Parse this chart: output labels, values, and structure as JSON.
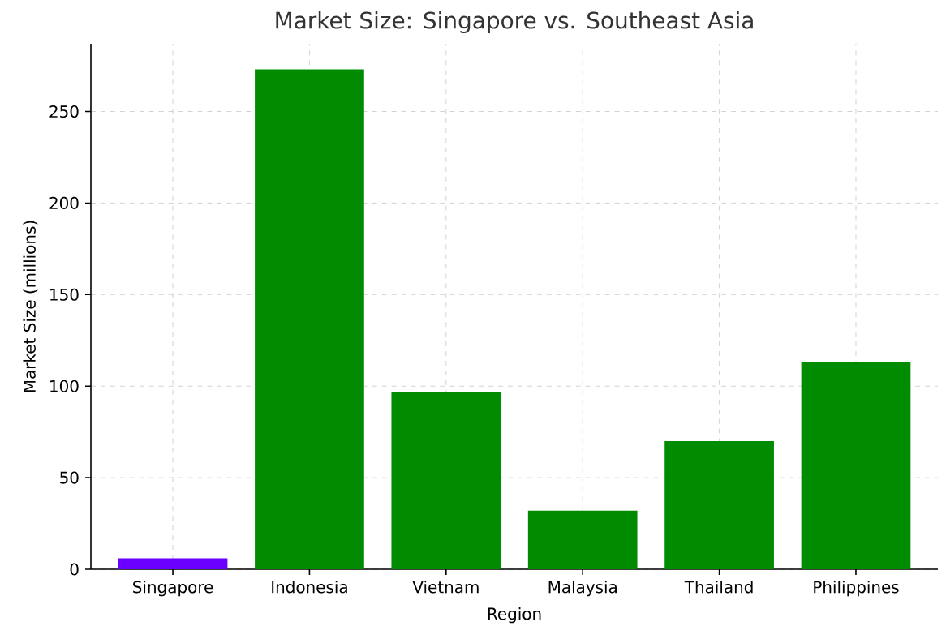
{
  "chart_data": {
    "type": "bar",
    "title": "Market Size: Singapore vs. Southeast Asia",
    "xlabel": "Region",
    "ylabel": "Market Size (millions)",
    "categories": [
      "Singapore",
      "Indonesia",
      "Vietnam",
      "Malaysia",
      "Thailand",
      "Philippines"
    ],
    "values": [
      6,
      273,
      97,
      32,
      70,
      113
    ],
    "colors": [
      "#6a00ff",
      "#008b00",
      "#008b00",
      "#008b00",
      "#008b00",
      "#008b00"
    ],
    "ylim": [
      0,
      287
    ],
    "yticks": [
      0,
      50,
      100,
      150,
      200,
      250
    ],
    "grid": true
  }
}
